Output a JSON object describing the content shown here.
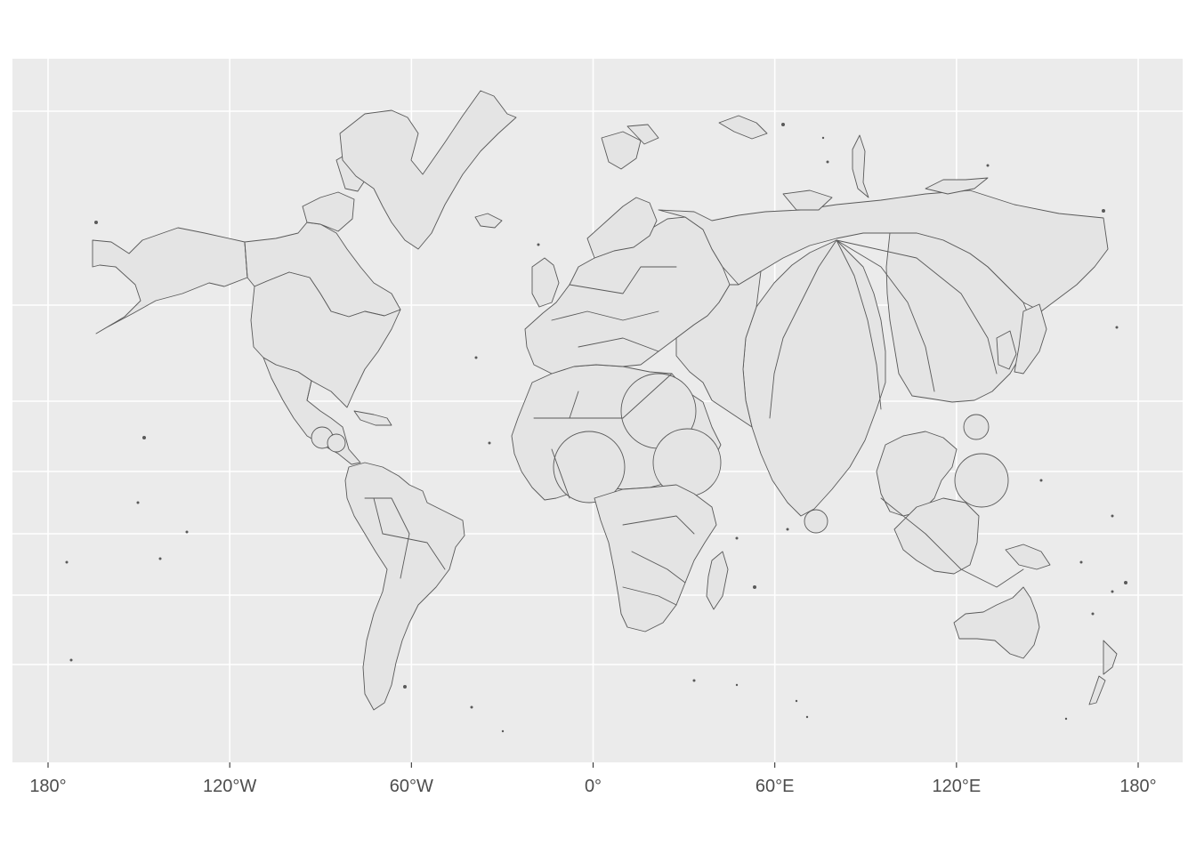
{
  "map": {
    "type": "cartogram-world-map",
    "x_axis": {
      "ticks": [
        {
          "value": -180,
          "label": "180°"
        },
        {
          "value": -120,
          "label": "120°W"
        },
        {
          "value": -60,
          "label": "60°W"
        },
        {
          "value": 0,
          "label": "0°"
        },
        {
          "value": 60,
          "label": "60°E"
        },
        {
          "value": 120,
          "label": "120°E"
        },
        {
          "value": 180,
          "label": "180°"
        }
      ],
      "range": [
        -180,
        180
      ]
    },
    "colors": {
      "panel_background": "#ebebeb",
      "gridlines": "#ffffff",
      "land_fill": "#e4e4e4",
      "borders": "#595959",
      "tick_labels": "#4d4d4d"
    }
  }
}
